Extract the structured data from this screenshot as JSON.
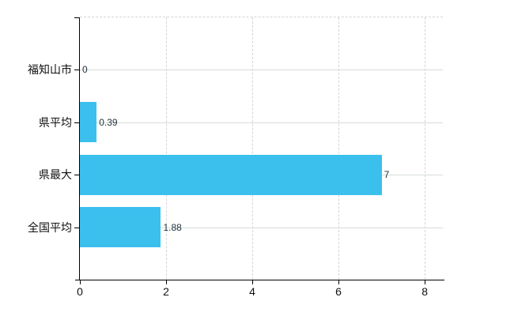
{
  "chart_data": {
    "type": "bar",
    "orientation": "horizontal",
    "categories": [
      "福知山市",
      "県平均",
      "県最大",
      "全国平均"
    ],
    "values": [
      0,
      0.39,
      7,
      1.88
    ],
    "value_labels": [
      "0",
      "0.39",
      "7",
      "1.88"
    ],
    "x_tick_labels": [
      "0",
      "2",
      "4",
      "6",
      "8"
    ],
    "x_tick_values": [
      0,
      2,
      4,
      6,
      8
    ],
    "xlim": [
      0,
      8.42
    ],
    "grid": "on",
    "legend": "none"
  },
  "colors": {
    "bar": "#3bc0ee",
    "grid_horizontal": "#d5ddd5",
    "grid_vertical": "#d9d2d6",
    "axis": "#000000",
    "category_text": "#111111",
    "tick_text": "#111111",
    "value_text": "#223240",
    "background": "#ffffff"
  }
}
